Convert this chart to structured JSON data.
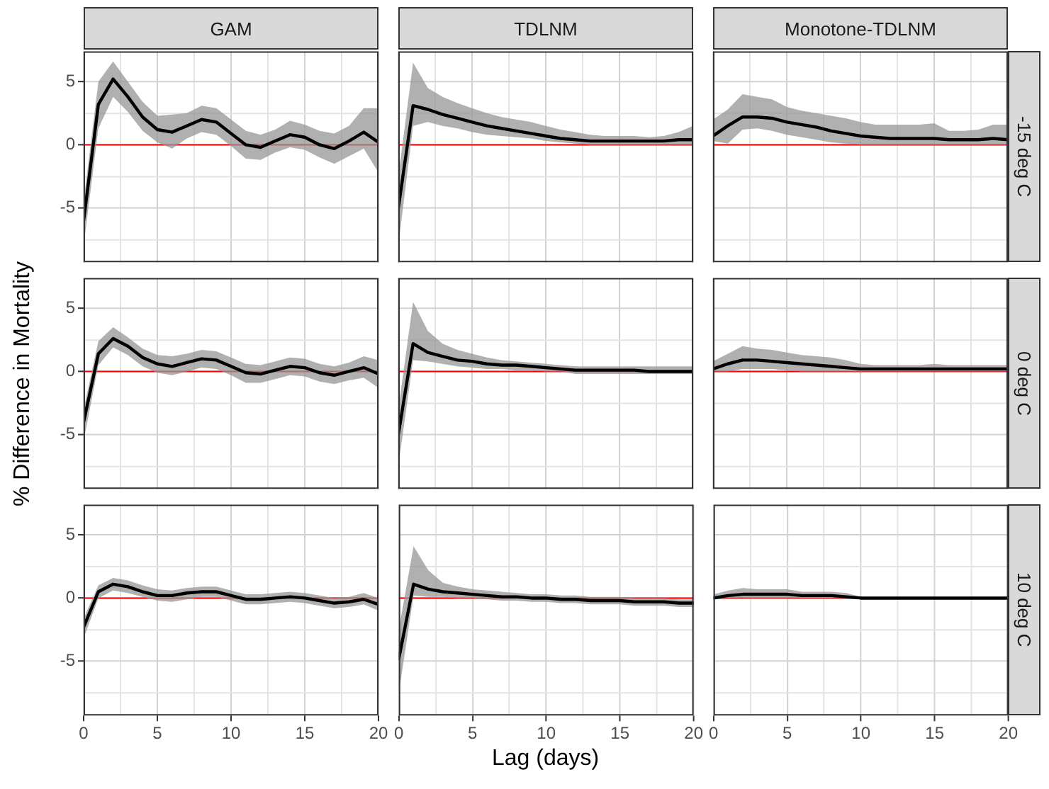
{
  "chart_data": [
    {
      "type": "line",
      "title": "GAM",
      "tick_labels": "y",
      "x": [
        0,
        1,
        2,
        3,
        4,
        5,
        6,
        7,
        8,
        9,
        10,
        11,
        12,
        13,
        14,
        15,
        16,
        17,
        18,
        19,
        20
      ],
      "xlim": [
        0,
        20
      ],
      "xticks": [
        0,
        {
          "value": 2.5,
          "label": null
        },
        5,
        {
          "value": 7.5,
          "label": null
        },
        10,
        {
          "value": 12.5,
          "label": null
        },
        15,
        {
          "value": 17.5,
          "label": null
        },
        20
      ],
      "ylim": [
        -9.3,
        7.4
      ],
      "yticks": [
        {
          "value": -7.5,
          "label": null
        },
        -5,
        {
          "value": -2.5,
          "label": null
        },
        0,
        {
          "value": 2.5,
          "label": null
        },
        5
      ],
      "grid": true,
      "marker": "none",
      "ref_lines": [
        {
          "axis": "y",
          "value": 0,
          "color": "#ff0000"
        }
      ],
      "series": [
        {
          "color": "#000000",
          "values": [
            -6.0,
            3.2,
            5.2,
            3.8,
            2.2,
            1.2,
            1.0,
            1.5,
            2.0,
            1.8,
            0.9,
            0.0,
            -0.2,
            0.3,
            0.8,
            0.6,
            0.0,
            -0.3,
            0.3,
            1.0,
            0.2
          ],
          "lower": [
            -8.0,
            1.3,
            3.8,
            2.6,
            1.1,
            0.2,
            -0.3,
            0.5,
            1.0,
            0.8,
            -0.1,
            -1.1,
            -1.2,
            -0.6,
            -0.2,
            -0.4,
            -1.0,
            -1.5,
            -0.9,
            -0.3,
            -2.2
          ],
          "upper": [
            -4.5,
            5.0,
            6.6,
            5.0,
            3.4,
            2.3,
            2.4,
            2.5,
            3.1,
            2.9,
            2.0,
            1.1,
            0.8,
            1.2,
            1.9,
            1.6,
            1.1,
            0.9,
            1.5,
            2.9,
            2.9
          ]
        }
      ]
    },
    {
      "type": "line",
      "title": "TDLNM",
      "tick_labels": false,
      "x": [
        0,
        1,
        2,
        3,
        4,
        5,
        6,
        7,
        8,
        9,
        10,
        11,
        12,
        13,
        14,
        15,
        16,
        17,
        18,
        19,
        20
      ],
      "xlim": [
        0,
        20
      ],
      "xticks": [
        0,
        {
          "value": 2.5,
          "label": null
        },
        5,
        {
          "value": 7.5,
          "label": null
        },
        10,
        {
          "value": 12.5,
          "label": null
        },
        15,
        {
          "value": 17.5,
          "label": null
        },
        20
      ],
      "ylim": [
        -9.3,
        7.4
      ],
      "yticks": [
        {
          "value": -7.5,
          "label": null
        },
        -5,
        {
          "value": -2.5,
          "label": null
        },
        0,
        {
          "value": 2.5,
          "label": null
        },
        5
      ],
      "grid": true,
      "marker": "none",
      "ref_lines": [
        {
          "axis": "y",
          "value": 0,
          "color": "#ff0000"
        }
      ],
      "series": [
        {
          "color": "#000000",
          "values": [
            -5.0,
            3.1,
            2.8,
            2.4,
            2.1,
            1.8,
            1.5,
            1.3,
            1.1,
            0.9,
            0.7,
            0.5,
            0.4,
            0.3,
            0.3,
            0.3,
            0.3,
            0.3,
            0.3,
            0.4,
            0.4
          ],
          "lower": [
            -8.0,
            1.5,
            1.8,
            1.5,
            1.3,
            1.0,
            0.8,
            0.7,
            0.6,
            0.5,
            0.3,
            0.2,
            0.1,
            0.0,
            0.0,
            0.0,
            0.0,
            0.0,
            0.0,
            0.0,
            0.0
          ],
          "upper": [
            -2.5,
            6.5,
            4.5,
            3.8,
            3.3,
            2.9,
            2.5,
            2.2,
            2.0,
            1.8,
            1.5,
            1.2,
            1.0,
            0.8,
            0.7,
            0.7,
            0.7,
            0.6,
            0.7,
            1.0,
            1.5
          ]
        }
      ]
    },
    {
      "type": "line",
      "title": "Monotone-TDLNM",
      "y2label": "-15 deg C",
      "tick_labels": false,
      "x": [
        0,
        1,
        2,
        3,
        4,
        5,
        6,
        7,
        8,
        9,
        10,
        11,
        12,
        13,
        14,
        15,
        16,
        17,
        18,
        19,
        20
      ],
      "xlim": [
        0,
        20
      ],
      "xticks": [
        0,
        {
          "value": 2.5,
          "label": null
        },
        5,
        {
          "value": 7.5,
          "label": null
        },
        10,
        {
          "value": 12.5,
          "label": null
        },
        15,
        {
          "value": 17.5,
          "label": null
        },
        20
      ],
      "ylim": [
        -9.3,
        7.4
      ],
      "yticks": [
        {
          "value": -7.5,
          "label": null
        },
        -5,
        {
          "value": -2.5,
          "label": null
        },
        0,
        {
          "value": 2.5,
          "label": null
        },
        5
      ],
      "grid": true,
      "marker": "none",
      "ref_lines": [
        {
          "axis": "y",
          "value": 0,
          "color": "#ff0000"
        }
      ],
      "series": [
        {
          "color": "#000000",
          "values": [
            0.7,
            1.5,
            2.2,
            2.2,
            2.1,
            1.8,
            1.6,
            1.4,
            1.1,
            0.9,
            0.7,
            0.6,
            0.5,
            0.5,
            0.5,
            0.5,
            0.4,
            0.4,
            0.4,
            0.5,
            0.4
          ],
          "lower": [
            0.3,
            0.1,
            1.2,
            1.3,
            1.1,
            0.8,
            0.6,
            0.4,
            0.2,
            0.1,
            0.0,
            0.0,
            0.0,
            0.0,
            0.0,
            0.0,
            0.0,
            0.0,
            0.0,
            0.0,
            0.0
          ],
          "upper": [
            2.0,
            2.8,
            4.0,
            3.8,
            3.6,
            3.0,
            2.7,
            2.5,
            2.3,
            2.1,
            1.8,
            1.6,
            1.6,
            1.6,
            1.6,
            1.7,
            1.1,
            1.1,
            1.2,
            1.6,
            1.6
          ]
        }
      ]
    },
    {
      "type": "line",
      "ylabel": "% Difference in Mortality",
      "tick_labels": "y",
      "x": [
        0,
        1,
        2,
        3,
        4,
        5,
        6,
        7,
        8,
        9,
        10,
        11,
        12,
        13,
        14,
        15,
        16,
        17,
        18,
        19,
        20
      ],
      "xlim": [
        0,
        20
      ],
      "xticks": [
        0,
        {
          "value": 2.5,
          "label": null
        },
        5,
        {
          "value": 7.5,
          "label": null
        },
        10,
        {
          "value": 12.5,
          "label": null
        },
        15,
        {
          "value": 17.5,
          "label": null
        },
        20
      ],
      "ylim": [
        -9.3,
        7.4
      ],
      "yticks": [
        {
          "value": -7.5,
          "label": null
        },
        -5,
        {
          "value": -2.5,
          "label": null
        },
        0,
        {
          "value": 2.5,
          "label": null
        },
        5
      ],
      "grid": true,
      "marker": "none",
      "ref_lines": [
        {
          "axis": "y",
          "value": 0,
          "color": "#ff0000"
        }
      ],
      "series": [
        {
          "color": "#000000",
          "values": [
            -4.0,
            1.4,
            2.6,
            2.0,
            1.1,
            0.6,
            0.4,
            0.7,
            1.0,
            0.9,
            0.4,
            -0.1,
            -0.2,
            0.1,
            0.4,
            0.3,
            -0.1,
            -0.3,
            0.0,
            0.3,
            -0.2
          ],
          "lower": [
            -5.5,
            0.5,
            1.9,
            1.3,
            0.4,
            -0.1,
            -0.3,
            0.0,
            0.3,
            0.2,
            -0.3,
            -0.9,
            -0.9,
            -0.6,
            -0.3,
            -0.4,
            -0.8,
            -1.0,
            -0.7,
            -0.5,
            -1.3
          ],
          "upper": [
            -3.0,
            2.4,
            3.5,
            2.7,
            1.8,
            1.3,
            1.2,
            1.4,
            1.7,
            1.6,
            1.1,
            0.6,
            0.5,
            0.8,
            1.1,
            1.0,
            0.6,
            0.4,
            0.7,
            1.2,
            0.9
          ]
        }
      ]
    },
    {
      "type": "line",
      "tick_labels": false,
      "x": [
        0,
        1,
        2,
        3,
        4,
        5,
        6,
        7,
        8,
        9,
        10,
        11,
        12,
        13,
        14,
        15,
        16,
        17,
        18,
        19,
        20
      ],
      "xlim": [
        0,
        20
      ],
      "xticks": [
        0,
        {
          "value": 2.5,
          "label": null
        },
        5,
        {
          "value": 7.5,
          "label": null
        },
        10,
        {
          "value": 12.5,
          "label": null
        },
        15,
        {
          "value": 17.5,
          "label": null
        },
        20
      ],
      "ylim": [
        -9.3,
        7.4
      ],
      "yticks": [
        {
          "value": -7.5,
          "label": null
        },
        -5,
        {
          "value": -2.5,
          "label": null
        },
        0,
        {
          "value": 2.5,
          "label": null
        },
        5
      ],
      "grid": true,
      "marker": "none",
      "ref_lines": [
        {
          "axis": "y",
          "value": 0,
          "color": "#ff0000"
        }
      ],
      "series": [
        {
          "color": "#000000",
          "values": [
            -5.0,
            2.2,
            1.5,
            1.2,
            0.9,
            0.8,
            0.6,
            0.5,
            0.5,
            0.4,
            0.3,
            0.2,
            0.1,
            0.1,
            0.1,
            0.1,
            0.1,
            0.0,
            0.0,
            0.0,
            0.0
          ],
          "lower": [
            -7.5,
            0.9,
            0.8,
            0.6,
            0.4,
            0.3,
            0.2,
            0.2,
            0.1,
            0.1,
            0.0,
            0.0,
            -0.2,
            -0.2,
            -0.2,
            -0.2,
            -0.2,
            -0.2,
            -0.2,
            -0.2,
            -0.2
          ],
          "upper": [
            -3.0,
            5.5,
            3.2,
            2.2,
            1.7,
            1.4,
            1.1,
            0.9,
            0.8,
            0.7,
            0.6,
            0.5,
            0.4,
            0.4,
            0.4,
            0.4,
            0.4,
            0.4,
            0.4,
            0.4,
            0.4
          ]
        }
      ]
    },
    {
      "type": "line",
      "y2label": "0 deg C",
      "tick_labels": false,
      "x": [
        0,
        1,
        2,
        3,
        4,
        5,
        6,
        7,
        8,
        9,
        10,
        11,
        12,
        13,
        14,
        15,
        16,
        17,
        18,
        19,
        20
      ],
      "xlim": [
        0,
        20
      ],
      "xticks": [
        0,
        {
          "value": 2.5,
          "label": null
        },
        5,
        {
          "value": 7.5,
          "label": null
        },
        10,
        {
          "value": 12.5,
          "label": null
        },
        15,
        {
          "value": 17.5,
          "label": null
        },
        20
      ],
      "ylim": [
        -9.3,
        7.4
      ],
      "yticks": [
        {
          "value": -7.5,
          "label": null
        },
        -5,
        {
          "value": -2.5,
          "label": null
        },
        0,
        {
          "value": 2.5,
          "label": null
        },
        5
      ],
      "grid": true,
      "marker": "none",
      "ref_lines": [
        {
          "axis": "y",
          "value": 0,
          "color": "#ff0000"
        }
      ],
      "series": [
        {
          "color": "#000000",
          "values": [
            0.2,
            0.6,
            0.9,
            0.9,
            0.8,
            0.7,
            0.6,
            0.5,
            0.4,
            0.3,
            0.2,
            0.2,
            0.2,
            0.2,
            0.2,
            0.2,
            0.2,
            0.2,
            0.2,
            0.2,
            0.2
          ],
          "lower": [
            0.0,
            0.0,
            0.2,
            0.2,
            0.2,
            0.1,
            0.0,
            0.0,
            0.0,
            0.0,
            0.0,
            0.0,
            0.0,
            0.0,
            0.0,
            0.0,
            0.0,
            0.0,
            0.0,
            0.0,
            0.0
          ],
          "upper": [
            0.8,
            1.4,
            2.0,
            1.8,
            1.7,
            1.5,
            1.3,
            1.2,
            1.1,
            0.9,
            0.6,
            0.5,
            0.5,
            0.5,
            0.5,
            0.6,
            0.5,
            0.5,
            0.5,
            0.5,
            0.5
          ]
        }
      ]
    },
    {
      "type": "line",
      "tick_labels": "xy",
      "x": [
        0,
        1,
        2,
        3,
        4,
        5,
        6,
        7,
        8,
        9,
        10,
        11,
        12,
        13,
        14,
        15,
        16,
        17,
        18,
        19,
        20
      ],
      "xlim": [
        0,
        20
      ],
      "xticks": [
        0,
        {
          "value": 2.5,
          "label": null
        },
        5,
        {
          "value": 7.5,
          "label": null
        },
        10,
        {
          "value": 12.5,
          "label": null
        },
        15,
        {
          "value": 17.5,
          "label": null
        },
        20
      ],
      "ylim": [
        -9.3,
        7.4
      ],
      "yticks": [
        {
          "value": -7.5,
          "label": null
        },
        -5,
        {
          "value": -2.5,
          "label": null
        },
        0,
        {
          "value": 2.5,
          "label": null
        },
        5
      ],
      "grid": true,
      "marker": "none",
      "ref_lines": [
        {
          "axis": "y",
          "value": 0,
          "color": "#ff0000"
        }
      ],
      "series": [
        {
          "color": "#000000",
          "values": [
            -2.3,
            0.5,
            1.1,
            0.9,
            0.5,
            0.2,
            0.2,
            0.4,
            0.5,
            0.5,
            0.2,
            -0.1,
            -0.1,
            0.0,
            0.1,
            0.0,
            -0.2,
            -0.4,
            -0.3,
            -0.1,
            -0.5
          ],
          "lower": [
            -3.2,
            0.0,
            0.6,
            0.4,
            0.1,
            -0.2,
            -0.3,
            -0.1,
            0.1,
            0.1,
            -0.2,
            -0.5,
            -0.5,
            -0.4,
            -0.3,
            -0.4,
            -0.6,
            -0.8,
            -0.7,
            -0.5,
            -1.0
          ],
          "upper": [
            -1.6,
            1.0,
            1.6,
            1.4,
            1.0,
            0.7,
            0.6,
            0.8,
            0.9,
            0.9,
            0.6,
            0.3,
            0.3,
            0.4,
            0.5,
            0.4,
            0.2,
            0.0,
            0.1,
            0.4,
            0.0
          ]
        }
      ]
    },
    {
      "type": "line",
      "xlabel": "Lag (days)",
      "tick_labels": "x",
      "x": [
        0,
        1,
        2,
        3,
        4,
        5,
        6,
        7,
        8,
        9,
        10,
        11,
        12,
        13,
        14,
        15,
        16,
        17,
        18,
        19,
        20
      ],
      "xlim": [
        0,
        20
      ],
      "xticks": [
        0,
        {
          "value": 2.5,
          "label": null
        },
        5,
        {
          "value": 7.5,
          "label": null
        },
        10,
        {
          "value": 12.5,
          "label": null
        },
        15,
        {
          "value": 17.5,
          "label": null
        },
        20
      ],
      "ylim": [
        -9.3,
        7.4
      ],
      "yticks": [
        {
          "value": -7.5,
          "label": null
        },
        -5,
        {
          "value": -2.5,
          "label": null
        },
        0,
        {
          "value": 2.5,
          "label": null
        },
        5
      ],
      "grid": true,
      "marker": "none",
      "ref_lines": [
        {
          "axis": "y",
          "value": 0,
          "color": "#ff0000"
        }
      ],
      "series": [
        {
          "color": "#000000",
          "values": [
            -4.8,
            1.1,
            0.7,
            0.5,
            0.4,
            0.3,
            0.2,
            0.1,
            0.1,
            0.0,
            0.0,
            -0.1,
            -0.1,
            -0.2,
            -0.2,
            -0.2,
            -0.3,
            -0.3,
            -0.3,
            -0.4,
            -0.4
          ],
          "lower": [
            -7.5,
            0.2,
            0.1,
            0.1,
            0.0,
            0.0,
            -0.1,
            -0.2,
            -0.2,
            -0.3,
            -0.3,
            -0.4,
            -0.4,
            -0.5,
            -0.5,
            -0.5,
            -0.6,
            -0.6,
            -0.6,
            -0.7,
            -0.7
          ],
          "upper": [
            -2.5,
            4.1,
            2.2,
            1.2,
            0.9,
            0.7,
            0.6,
            0.5,
            0.4,
            0.3,
            0.3,
            0.2,
            0.2,
            0.1,
            0.1,
            0.1,
            0.0,
            0.0,
            0.0,
            -0.1,
            -0.1
          ]
        }
      ]
    },
    {
      "type": "line",
      "y2label": "10 deg C",
      "tick_labels": "x",
      "x": [
        0,
        1,
        2,
        3,
        4,
        5,
        6,
        7,
        8,
        9,
        10,
        11,
        12,
        13,
        14,
        15,
        16,
        17,
        18,
        19,
        20
      ],
      "xlim": [
        0,
        20
      ],
      "xticks": [
        0,
        {
          "value": 2.5,
          "label": null
        },
        5,
        {
          "value": 7.5,
          "label": null
        },
        10,
        {
          "value": 12.5,
          "label": null
        },
        15,
        {
          "value": 17.5,
          "label": null
        },
        20
      ],
      "ylim": [
        -9.3,
        7.4
      ],
      "yticks": [
        {
          "value": -7.5,
          "label": null
        },
        -5,
        {
          "value": -2.5,
          "label": null
        },
        0,
        {
          "value": 2.5,
          "label": null
        },
        5
      ],
      "grid": true,
      "marker": "none",
      "ref_lines": [
        {
          "axis": "y",
          "value": 0,
          "color": "#ff0000"
        }
      ],
      "series": [
        {
          "color": "#000000",
          "values": [
            0.0,
            0.2,
            0.3,
            0.3,
            0.3,
            0.3,
            0.2,
            0.2,
            0.2,
            0.1,
            0.0,
            0.0,
            0.0,
            0.0,
            0.0,
            0.0,
            0.0,
            0.0,
            0.0,
            0.0,
            0.0
          ],
          "lower": [
            0.0,
            0.0,
            0.0,
            0.0,
            0.0,
            0.0,
            0.0,
            0.0,
            0.0,
            0.0,
            0.0,
            0.0,
            0.0,
            0.0,
            0.0,
            0.0,
            0.0,
            0.0,
            0.0,
            0.0,
            0.0
          ],
          "upper": [
            0.3,
            0.6,
            0.8,
            0.7,
            0.7,
            0.7,
            0.5,
            0.5,
            0.5,
            0.4,
            0.1,
            0.1,
            0.1,
            0.1,
            0.1,
            0.1,
            0.1,
            0.1,
            0.1,
            0.1,
            0.1
          ]
        }
      ]
    }
  ]
}
